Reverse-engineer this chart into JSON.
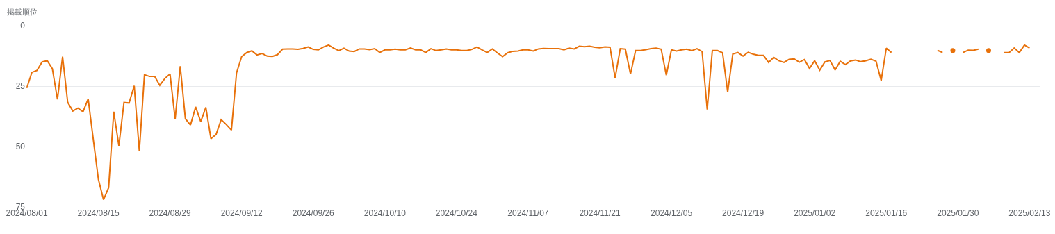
{
  "chart_data": {
    "type": "line",
    "ylabel": "掲載順位",
    "x": [
      "2024-08-01",
      "2024-08-02",
      "2024-08-03",
      "2024-08-04",
      "2024-08-05",
      "2024-08-06",
      "2024-08-07",
      "2024-08-08",
      "2024-08-09",
      "2024-08-10",
      "2024-08-11",
      "2024-08-12",
      "2024-08-13",
      "2024-08-14",
      "2024-08-15",
      "2024-08-16",
      "2024-08-17",
      "2024-08-18",
      "2024-08-19",
      "2024-08-20",
      "2024-08-21",
      "2024-08-22",
      "2024-08-23",
      "2024-08-24",
      "2024-08-25",
      "2024-08-26",
      "2024-08-27",
      "2024-08-28",
      "2024-08-29",
      "2024-08-30",
      "2024-08-31",
      "2024-09-01",
      "2024-09-02",
      "2024-09-03",
      "2024-09-04",
      "2024-09-05",
      "2024-09-06",
      "2024-09-07",
      "2024-09-08",
      "2024-09-09",
      "2024-09-10",
      "2024-09-11",
      "2024-09-12",
      "2024-09-13",
      "2024-09-14",
      "2024-09-15",
      "2024-09-16",
      "2024-09-17",
      "2024-09-18",
      "2024-09-19",
      "2024-09-20",
      "2024-09-21",
      "2024-09-22",
      "2024-09-23",
      "2024-09-24",
      "2024-09-25",
      "2024-09-26",
      "2024-09-27",
      "2024-09-28",
      "2024-09-29",
      "2024-09-30",
      "2024-10-01",
      "2024-10-02",
      "2024-10-03",
      "2024-10-04",
      "2024-10-05",
      "2024-10-06",
      "2024-10-07",
      "2024-10-08",
      "2024-10-09",
      "2024-10-10",
      "2024-10-11",
      "2024-10-12",
      "2024-10-13",
      "2024-10-14",
      "2024-10-15",
      "2024-10-16",
      "2024-10-17",
      "2024-10-18",
      "2024-10-19",
      "2024-10-20",
      "2024-10-21",
      "2024-10-22",
      "2024-10-23",
      "2024-10-24",
      "2024-10-25",
      "2024-10-26",
      "2024-10-27",
      "2024-10-28",
      "2024-10-29",
      "2024-10-30",
      "2024-10-31",
      "2024-11-01",
      "2024-11-02",
      "2024-11-03",
      "2024-11-04",
      "2024-11-05",
      "2024-11-06",
      "2024-11-07",
      "2024-11-08",
      "2024-11-09",
      "2024-11-10",
      "2024-11-11",
      "2024-11-12",
      "2024-11-13",
      "2024-11-14",
      "2024-11-15",
      "2024-11-16",
      "2024-11-17",
      "2024-11-18",
      "2024-11-19",
      "2024-11-20",
      "2024-11-21",
      "2024-11-22",
      "2024-11-23",
      "2024-11-24",
      "2024-11-25",
      "2024-11-26",
      "2024-11-27",
      "2024-11-28",
      "2024-11-29",
      "2024-11-30",
      "2024-12-01",
      "2024-12-02",
      "2024-12-03",
      "2024-12-04",
      "2024-12-05",
      "2024-12-06",
      "2024-12-07",
      "2024-12-08",
      "2024-12-09",
      "2024-12-10",
      "2024-12-11",
      "2024-12-12",
      "2024-12-13",
      "2024-12-14",
      "2024-12-15",
      "2024-12-16",
      "2024-12-17",
      "2024-12-18",
      "2024-12-19",
      "2024-12-20",
      "2024-12-21",
      "2024-12-22",
      "2024-12-23",
      "2024-12-24",
      "2024-12-25",
      "2024-12-26",
      "2024-12-27",
      "2024-12-28",
      "2024-12-29",
      "2024-12-30",
      "2024-12-31",
      "2025-01-01",
      "2025-01-02",
      "2025-01-03",
      "2025-01-04",
      "2025-01-05",
      "2025-01-06",
      "2025-01-07",
      "2025-01-08",
      "2025-01-09",
      "2025-01-10",
      "2025-01-11",
      "2025-01-12",
      "2025-01-13",
      "2025-01-14",
      "2025-01-15",
      "2025-01-16",
      "2025-01-17",
      "2025-01-18",
      "2025-01-19",
      "2025-01-20",
      "2025-01-21",
      "2025-01-22",
      "2025-01-23",
      "2025-01-24",
      "2025-01-25",
      "2025-01-26",
      "2025-01-27",
      "2025-01-28",
      "2025-01-29",
      "2025-01-30",
      "2025-01-31",
      "2025-02-01",
      "2025-02-02",
      "2025-02-03",
      "2025-02-04",
      "2025-02-05",
      "2025-02-06",
      "2025-02-07",
      "2025-02-08",
      "2025-02-09",
      "2025-02-10",
      "2025-02-11",
      "2025-02-12",
      "2025-02-13"
    ],
    "series": [
      {
        "color": "#e8710a",
        "values": [
          25.8,
          19.3,
          18.5,
          15.0,
          14.5,
          17.8,
          30.5,
          12.8,
          31.7,
          35.3,
          34.1,
          35.6,
          30.3,
          47,
          63.6,
          72.0,
          67.0,
          35.6,
          49.7,
          31.8,
          32.0,
          24.9,
          51.9,
          20.3,
          21.0,
          21.0,
          24.7,
          21.8,
          20.0,
          38.7,
          16.8,
          38.5,
          41.1,
          33.6,
          39.7,
          33.8,
          46.8,
          45.0,
          38.9,
          40.9,
          43.2,
          19.5,
          12.8,
          11.1,
          10.4,
          12.1,
          11.5,
          12.6,
          12.7,
          12.0,
          9.7,
          9.6,
          9.6,
          9.8,
          9.4,
          8.8,
          9.8,
          10.0,
          8.8,
          8.0,
          9.3,
          10.3,
          9.3,
          10.5,
          10.7,
          9.6,
          9.6,
          9.9,
          9.5,
          11.1,
          10.0,
          10.0,
          9.7,
          10.0,
          10.0,
          9.2,
          10.0,
          10.0,
          11.1,
          9.5,
          10.3,
          10.0,
          9.6,
          10.0,
          10.0,
          10.3,
          10.3,
          9.8,
          8.8,
          10.0,
          11.1,
          9.6,
          11.3,
          12.8,
          11.2,
          10.6,
          10.5,
          10.0,
          10.0,
          10.5,
          9.6,
          9.4,
          9.5,
          9.5,
          9.5,
          10.0,
          9.3,
          9.6,
          8.5,
          8.7,
          8.5,
          8.9,
          9.1,
          8.8,
          8.9,
          21.6,
          9.5,
          9.7,
          20.0,
          10.3,
          10.3,
          9.9,
          9.5,
          9.3,
          9.7,
          20.5,
          10.0,
          10.5,
          10.0,
          9.7,
          10.3,
          9.5,
          10.7,
          34.7,
          10.3,
          10.3,
          11.2,
          27.5,
          11.7,
          11.1,
          12.6,
          11.0,
          11.8,
          12.3,
          12.3,
          15.2,
          13.1,
          14.5,
          15.2,
          13.9,
          13.7,
          15.1,
          14.0,
          17.7,
          14.5,
          18.4,
          15.0,
          14.4,
          18.3,
          14.7,
          16.1,
          14.6,
          14.2,
          14.9,
          14.5,
          13.9,
          14.7,
          22.7,
          9.3,
          11.1,
          null,
          null,
          null,
          null,
          null,
          null,
          null,
          null,
          10.2,
          11.1,
          null,
          10.3,
          null,
          11.1,
          10.1,
          10.2,
          9.7,
          null,
          10.3,
          null,
          null,
          11.1,
          11.1,
          9.2,
          11.1,
          8.0,
          9.2
        ]
      }
    ],
    "xlim": [
      "2024-07-31T19:00",
      "2025-02-15T03:00"
    ],
    "xticks": [
      {
        "value": "2024-08-01",
        "label": "2024/08/01"
      },
      {
        "value": "2024-08-15",
        "label": "2024/08/15"
      },
      {
        "value": "2024-08-29",
        "label": "2024/08/29"
      },
      {
        "value": "2024-09-12",
        "label": "2024/09/12"
      },
      {
        "value": "2024-09-26",
        "label": "2024/09/26"
      },
      {
        "value": "2024-10-10",
        "label": "2024/10/10"
      },
      {
        "value": "2024-10-24",
        "label": "2024/10/24"
      },
      {
        "value": "2024-11-07",
        "label": "2024/11/07"
      },
      {
        "value": "2024-11-21",
        "label": "2024/11/21"
      },
      {
        "value": "2024-12-05",
        "label": "2024/12/05"
      },
      {
        "value": "2024-12-19",
        "label": "2024/12/19"
      },
      {
        "value": "2025-01-02",
        "label": "2025/01/02"
      },
      {
        "value": "2025-01-16",
        "label": "2025/01/16"
      },
      {
        "value": "2025-01-30",
        "label": "2025/01/30"
      },
      {
        "value": "2025-02-13",
        "label": "2025/02/13"
      }
    ],
    "ylim": [
      75,
      0
    ],
    "yticks": [
      0,
      25,
      50,
      75
    ],
    "grid": "y"
  }
}
